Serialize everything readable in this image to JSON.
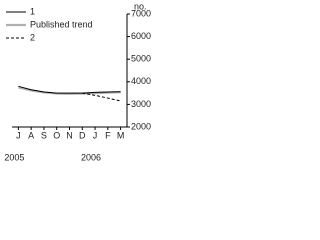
{
  "chart_data": {
    "type": "line",
    "y_axis_label": "no.",
    "categories": [
      "J",
      "A",
      "S",
      "O",
      "N",
      "D",
      "J",
      "F",
      "M"
    ],
    "year_labels": [
      "2005",
      null,
      null,
      null,
      null,
      null,
      "2006",
      null,
      null
    ],
    "series": [
      {
        "name": "1",
        "color": "#000000",
        "style": "solid",
        "values": [
          3800,
          3650,
          3550,
          3500,
          3500,
          3500,
          3530,
          3550,
          3560
        ]
      },
      {
        "name": "Published trend",
        "color": "#b0b0b0",
        "style": "thick",
        "values": [
          3750,
          3620,
          3530,
          3480,
          3470,
          3480,
          3500,
          3520,
          3540
        ]
      },
      {
        "name": "2",
        "color": "#000000",
        "style": "dashed",
        "values": [
          null,
          null,
          null,
          null,
          null,
          3500,
          3400,
          3280,
          3150
        ]
      }
    ],
    "ylim": [
      2000,
      7000
    ],
    "yticks": [
      2000,
      3000,
      4000,
      5000,
      6000,
      7000
    ]
  }
}
